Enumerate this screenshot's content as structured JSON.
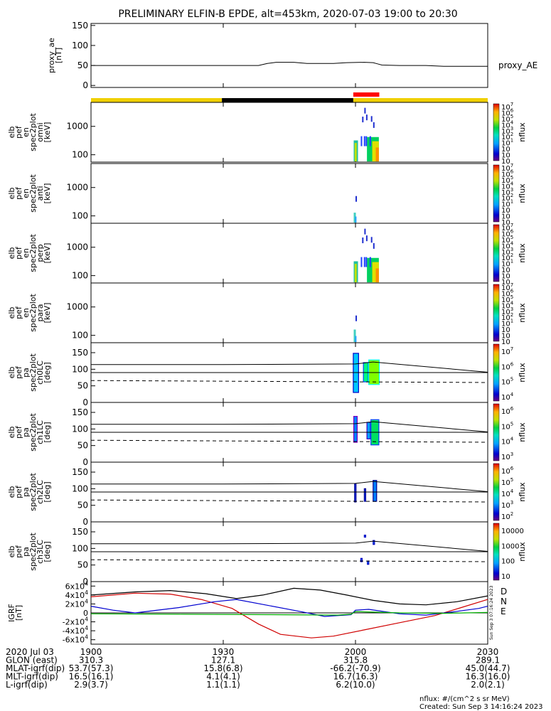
{
  "title": "PRELIMINARY ELFIN-B EPDE, alt=453km, 2020-07-03 19:00 to 20:30",
  "chart_data": {
    "type": "spectrogram-stack",
    "x_range_minutes": [
      0,
      90
    ],
    "x_ticks": [
      {
        "t": 0,
        "label": "1900"
      },
      {
        "t": 30,
        "label": "1930"
      },
      {
        "t": 60,
        "label": "2000"
      },
      {
        "t": 90,
        "label": "2030"
      }
    ],
    "proxy_ae": {
      "ylabel_lines": [
        "proxy_ae",
        "[nT]"
      ],
      "legend": "proxy_AE",
      "ylim": [
        -5,
        155
      ],
      "yticks": [
        0,
        50,
        100,
        150
      ],
      "points": [
        [
          0,
          50
        ],
        [
          20,
          50
        ],
        [
          38,
          50
        ],
        [
          40,
          55
        ],
        [
          42,
          58
        ],
        [
          46,
          58
        ],
        [
          49,
          55
        ],
        [
          55,
          55
        ],
        [
          58,
          57
        ],
        [
          62,
          58
        ],
        [
          64,
          57
        ],
        [
          65,
          54
        ],
        [
          66,
          51
        ],
        [
          70,
          50
        ],
        [
          76,
          50
        ],
        [
          80,
          48
        ],
        [
          84,
          48
        ],
        [
          90,
          48
        ]
      ]
    },
    "state_bar": [
      {
        "from": 0,
        "to": 29.7,
        "color": "#f0d000"
      },
      {
        "from": 29.7,
        "to": 59.5,
        "color": "#000000"
      },
      {
        "from": 59.5,
        "to": 90,
        "color": "#f0d000"
      }
    ],
    "science_zone": {
      "from": 59.5,
      "to": 65.4,
      "color": "#ff0000"
    },
    "energy_panels": [
      {
        "ylabel_lines": [
          "elb",
          "pef",
          "en",
          "spec2plot",
          "omni",
          "[keV]"
        ],
        "cbar_labels": [
          "10",
          "10",
          "10",
          "10",
          "10",
          "10",
          "10",
          "10",
          "10",
          "10"
        ],
        "cbar_exps": [
          "7",
          "6",
          "5",
          "4",
          "3",
          "2",
          "1",
          "",
          "",
          ""
        ]
      },
      {
        "ylabel_lines": [
          "elb",
          "pef",
          "en",
          "spec2plot",
          "anti",
          "[keV]"
        ],
        "cbar_labels": [
          "10",
          "10",
          "10",
          "10",
          "10",
          "10",
          "10",
          "10",
          "10",
          "10"
        ],
        "cbar_exps": [
          "7",
          "6",
          "5",
          "4",
          "3",
          "2",
          "1",
          "",
          "",
          ""
        ]
      },
      {
        "ylabel_lines": [
          "elb",
          "pef",
          "en",
          "spec2plot",
          "perp",
          "[keV]"
        ],
        "cbar_labels": [
          "10",
          "10",
          "10",
          "10",
          "10",
          "10",
          "10",
          "10",
          "10",
          "10"
        ],
        "cbar_exps": [
          "7",
          "6",
          "5",
          "4",
          "3",
          "2",
          "1",
          "",
          "",
          ""
        ]
      },
      {
        "ylabel_lines": [
          "elb",
          "pef",
          "en",
          "spec2plot",
          "para",
          "[keV]"
        ],
        "cbar_labels": [
          "10",
          "10",
          "10",
          "10",
          "10",
          "10",
          "10",
          "10",
          "10",
          "10"
        ],
        "cbar_exps": [
          "7",
          "6",
          "5",
          "4",
          "3",
          "2",
          "1",
          "",
          "",
          ""
        ]
      }
    ],
    "energy_axis": {
      "scale": "log",
      "ylim": [
        55,
        7000
      ],
      "yticks": [
        100,
        1000
      ]
    },
    "pitch_panels": [
      {
        "ylabel_lines": [
          "elb",
          "pef",
          "pa",
          "spec2plot",
          "ch0LC",
          "[deg]"
        ],
        "cbar": [
          {
            "v": "10",
            "e": "7"
          },
          {
            "v": "10",
            "e": "6"
          },
          {
            "v": "10",
            "e": "5"
          },
          {
            "v": "10",
            "e": "4"
          }
        ],
        "blobs": [
          {
            "t0": 59.5,
            "t1": 60.7,
            "ymin": 30,
            "ymax": 148,
            "core": "#00c8ff",
            "edge": "#0000c8"
          },
          {
            "t0": 61.8,
            "t1": 62.9,
            "ymin": 62,
            "ymax": 120,
            "core": "#00ff80",
            "edge": "#0040ff"
          },
          {
            "t0": 63.0,
            "t1": 65.4,
            "ymin": 54,
            "ymax": 128,
            "core": "#80ff00",
            "edge": "#00ffff"
          }
        ]
      },
      {
        "ylabel_lines": [
          "elb",
          "pef",
          "pa",
          "spec2plot",
          "ch1LC",
          "[deg]"
        ],
        "cbar": [
          {
            "v": "10",
            "e": "6"
          },
          {
            "v": "10",
            "e": "5"
          },
          {
            "v": "10",
            "e": "4"
          },
          {
            "v": "10",
            "e": "3"
          }
        ],
        "blobs": [
          {
            "t0": 59.6,
            "t1": 60.4,
            "ymin": 60,
            "ymax": 138,
            "core": "#0080ff",
            "edge": "#8000c0"
          },
          {
            "t0": 62.6,
            "t1": 63.4,
            "ymin": 70,
            "ymax": 120,
            "core": "#00a0ff",
            "edge": "#4000c0"
          },
          {
            "t0": 63.5,
            "t1": 65.3,
            "ymin": 52,
            "ymax": 128,
            "core": "#00e060",
            "edge": "#0040ff"
          }
        ]
      },
      {
        "ylabel_lines": [
          "elb",
          "pef",
          "pa",
          "spec2plot",
          "ch2LC",
          "[deg]"
        ],
        "cbar": [
          {
            "v": "10",
            "e": "6"
          },
          {
            "v": "10",
            "e": "5"
          },
          {
            "v": "10",
            "e": "4"
          },
          {
            "v": "10",
            "e": "3"
          },
          {
            "v": "10",
            "e": "2"
          }
        ],
        "blobs": [
          {
            "t0": 59.8,
            "t1": 60.1,
            "ymin": 60,
            "ymax": 115,
            "core": "#0040ff",
            "edge": "#000090"
          },
          {
            "t0": 62.0,
            "t1": 62.3,
            "ymin": 62,
            "ymax": 100,
            "core": "#0040ff",
            "edge": "#000090"
          },
          {
            "t0": 64.0,
            "t1": 64.8,
            "ymin": 62,
            "ymax": 125,
            "core": "#0080ff",
            "edge": "#000090"
          }
        ]
      },
      {
        "ylabel_lines": [
          "elb",
          "pef",
          "pa",
          "spec2plot",
          "ch3LC",
          "[deg]"
        ],
        "cbar": [
          {
            "v": "10000"
          },
          {
            "v": "1000"
          },
          {
            "v": "100"
          },
          {
            "v": "10"
          }
        ],
        "blobs": [
          {
            "t0": 62.0,
            "t1": 62.3,
            "ymin": 134,
            "ymax": 140,
            "core": "#0080ff",
            "edge": "#0000c0"
          },
          {
            "t0": 64.0,
            "t1": 64.3,
            "ymin": 112,
            "ymax": 124,
            "core": "#0080ff",
            "edge": "#0000c0"
          },
          {
            "t0": 61.2,
            "t1": 61.5,
            "ymin": 60,
            "ymax": 70,
            "core": "#0080ff",
            "edge": "#0000c0"
          },
          {
            "t0": 62.7,
            "t1": 63.0,
            "ymin": 52,
            "ymax": 62,
            "core": "#0080ff",
            "edge": "#0000c0"
          }
        ]
      }
    ],
    "pitch_axis": {
      "ylim": [
        0,
        180
      ],
      "yticks": [
        0,
        50,
        100,
        150
      ]
    },
    "pitch_lines": {
      "upper": [
        [
          0,
          114
        ],
        [
          30,
          114
        ],
        [
          60,
          116
        ],
        [
          64,
          122
        ],
        [
          90,
          91
        ]
      ],
      "lower": [
        [
          0,
          90
        ],
        [
          90,
          90
        ]
      ],
      "dashed": [
        [
          0,
          66
        ],
        [
          90,
          60
        ]
      ]
    },
    "cbar_units": "nflux",
    "igrf": {
      "ylabel_lines": [
        "IGRF",
        "[nT]"
      ],
      "ylim": [
        -70000,
        70000
      ],
      "yticks": [
        {
          "v": 60000,
          "base": "6x10",
          "e": "4"
        },
        {
          "v": 40000,
          "base": "4x10",
          "e": "4"
        },
        {
          "v": 20000,
          "base": "2x10",
          "e": "4"
        },
        {
          "v": 0,
          "base": "0",
          "e": ""
        },
        {
          "v": -20000,
          "base": "-2x10",
          "e": "4"
        },
        {
          "v": -40000,
          "base": "-4x10",
          "e": "4"
        },
        {
          "v": -60000,
          "base": "-6x10",
          "e": "4"
        }
      ],
      "legend": [
        {
          "label": "D",
          "color": "#d00000"
        },
        {
          "label": "N",
          "color": "#0000d0"
        },
        {
          "label": "E",
          "color": "#00c000"
        }
      ],
      "series": [
        {
          "name": "D",
          "color": "#d00000",
          "points": [
            [
              0,
              36000
            ],
            [
              10,
              44000
            ],
            [
              18,
              42000
            ],
            [
              25,
              30000
            ],
            [
              32,
              10000
            ],
            [
              38,
              -25000
            ],
            [
              43,
              -48000
            ],
            [
              50,
              -56000
            ],
            [
              55,
              -52000
            ],
            [
              62,
              -38000
            ],
            [
              70,
              -22000
            ],
            [
              78,
              -6000
            ],
            [
              84,
              12000
            ],
            [
              90,
              30000
            ]
          ]
        },
        {
          "name": "N",
          "color": "#0000d0",
          "points": [
            [
              0,
              15000
            ],
            [
              5,
              6000
            ],
            [
              10,
              0
            ],
            [
              20,
              12000
            ],
            [
              28,
              25000
            ],
            [
              33,
              30000
            ],
            [
              40,
              17000
            ],
            [
              48,
              2000
            ],
            [
              53,
              -8000
            ],
            [
              59,
              -4000
            ],
            [
              60,
              6000
            ],
            [
              63,
              8000
            ],
            [
              70,
              -2000
            ],
            [
              76,
              -5000
            ],
            [
              82,
              2000
            ],
            [
              88,
              10000
            ],
            [
              90,
              15000
            ]
          ]
        },
        {
          "name": "E",
          "color": "#00b000",
          "points": [
            [
              0,
              -2000
            ],
            [
              20,
              -3000
            ],
            [
              40,
              -4000
            ],
            [
              56,
              -5000
            ],
            [
              59,
              -3000
            ],
            [
              60,
              3000
            ],
            [
              70,
              0
            ],
            [
              80,
              -1000
            ],
            [
              90,
              1000
            ]
          ]
        },
        {
          "name": "total",
          "color": "#000000",
          "points": [
            [
              0,
              40000
            ],
            [
              10,
              47000
            ],
            [
              18,
              50000
            ],
            [
              26,
              43000
            ],
            [
              33,
              32000
            ],
            [
              39,
              40000
            ],
            [
              46,
              55000
            ],
            [
              52,
              51000
            ],
            [
              58,
              40000
            ],
            [
              64,
              28000
            ],
            [
              70,
              20000
            ],
            [
              76,
              18000
            ],
            [
              83,
              25000
            ],
            [
              90,
              38000
            ]
          ]
        }
      ]
    },
    "ephemeris": {
      "rows": [
        {
          "label": "2020 Jul 03",
          "values": [
            "1900",
            "1930",
            "2000",
            "2030"
          ]
        },
        {
          "label": "GLON (east)",
          "values": [
            "310.3",
            "127.1",
            "315.8",
            "289.1"
          ]
        },
        {
          "label": "MLAT-igrf(dip)",
          "values": [
            "53.7(57.3)",
            "15.8(6.8)",
            "-66.2(-70.9)",
            "45.0(44.7)"
          ]
        },
        {
          "label": "MLT-igrf(dip)",
          "values": [
            "16.5(16.1)",
            "4.1(4.1)",
            "16.7(16.3)",
            "16.3(16.0)"
          ]
        },
        {
          "label": "L-igrf(dip)",
          "values": [
            "2.9(3.7)",
            "1.1(1.1)",
            "6.2(10.0)",
            "2.0(2.1)"
          ]
        }
      ]
    },
    "footer_units": "nflux: #/(cm^2 s sr MeV)",
    "footer_created": "Created: Sun Sep  3 14:16:24 2023",
    "side_stamp": "Sun Sep  3 07:16:24 2023"
  }
}
